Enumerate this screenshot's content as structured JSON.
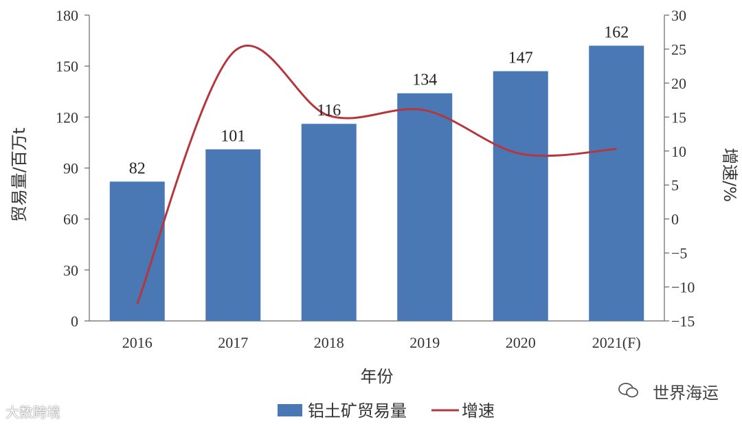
{
  "chart_data": {
    "type": "bar",
    "categories": [
      "2016",
      "2017",
      "2018",
      "2019",
      "2020",
      "2021(F)"
    ],
    "series": [
      {
        "name": "铝土矿贸易量",
        "type": "bar",
        "axis": "left",
        "values": [
          82,
          101,
          116,
          134,
          147,
          162
        ],
        "color": "#4a78b5"
      },
      {
        "name": "增速",
        "type": "line",
        "axis": "right",
        "values": [
          -12.5,
          24.5,
          15.2,
          16.0,
          9.6,
          10.3
        ],
        "color": "#b5363c"
      }
    ],
    "data_labels": [
      "82",
      "101",
      "116",
      "134",
      "147",
      "162"
    ],
    "xlabel": "年份",
    "ylabel": "贸易量/百万t",
    "y2label": "增速/%",
    "ylim": [
      0,
      180
    ],
    "y2lim": [
      -15,
      30
    ],
    "yticks": [
      "0",
      "30",
      "60",
      "90",
      "120",
      "150",
      "180"
    ],
    "y2ticks": [
      "−15",
      "−10",
      "−5",
      "0",
      "5",
      "10",
      "15",
      "20",
      "25",
      "30"
    ],
    "legend_position": "bottom",
    "grid": false
  },
  "watermarks": {
    "left": "大数跨境",
    "right": "世界海运"
  }
}
